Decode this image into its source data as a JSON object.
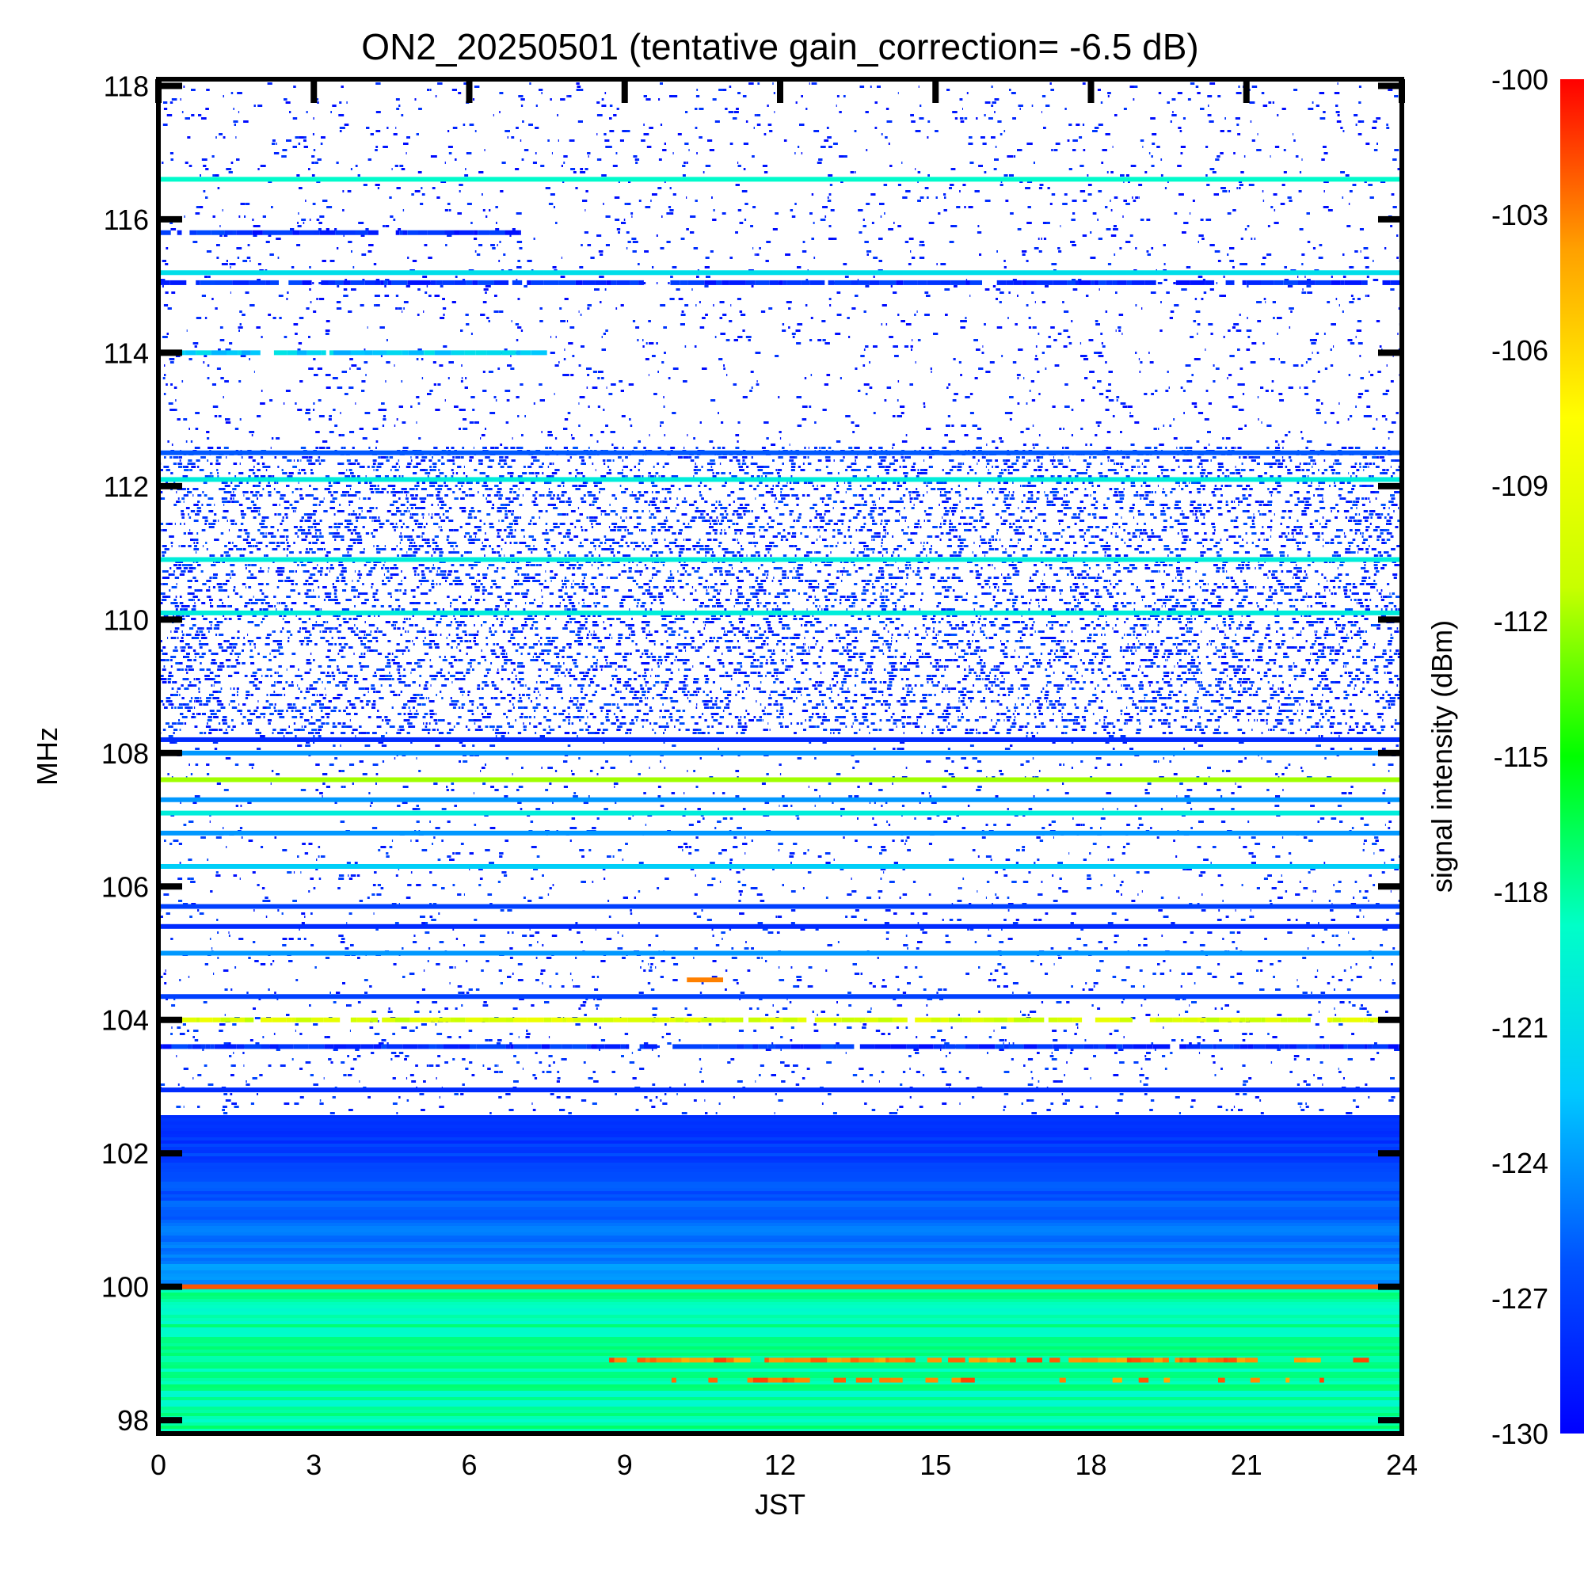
{
  "chart_data": {
    "type": "heatmap",
    "title": "ON2_20250501 (tentative gain_correction= -6.5 dB)",
    "xlabel": "JST",
    "ylabel": "MHz",
    "xlim": [
      0,
      24
    ],
    "ylim": [
      97.8,
      118.1
    ],
    "x_ticks": [
      "0",
      "3",
      "6",
      "9",
      "12",
      "15",
      "18",
      "21",
      "24"
    ],
    "y_ticks": [
      "98",
      "100",
      "102",
      "104",
      "106",
      "108",
      "110",
      "112",
      "114",
      "116",
      "118"
    ],
    "colorbar": {
      "label": "signal intensity (dBm)",
      "range": [
        -130,
        -100
      ],
      "ticks": [
        "-100",
        "-103",
        "-106",
        "-109",
        "-112",
        "-115",
        "-118",
        "-121",
        "-124",
        "-127",
        "-130"
      ],
      "colormap": [
        "#0000ff",
        "#0050ff",
        "#00c8ff",
        "#00ffc8",
        "#00ff00",
        "#c8ff00",
        "#ffff00",
        "#ffa000",
        "#ff0000"
      ]
    },
    "bands": [
      {
        "freq_mhz": 116.6,
        "level_dbm": -119,
        "duty": 1.0
      },
      {
        "freq_mhz": 115.8,
        "level_dbm": -128,
        "x_range": [
          0,
          7
        ],
        "duty": 0.9
      },
      {
        "freq_mhz": 115.2,
        "level_dbm": -121,
        "duty": 1.0
      },
      {
        "freq_mhz": 115.05,
        "level_dbm": -128,
        "duty": 0.9
      },
      {
        "freq_mhz": 114.0,
        "level_dbm": -122,
        "x_range": [
          0,
          7.5
        ],
        "duty": 0.9
      },
      {
        "freq_mhz": 112.5,
        "level_dbm": -126,
        "duty": 1.0
      },
      {
        "freq_mhz": 112.1,
        "level_dbm": -120,
        "duty": 1.0
      },
      {
        "freq_mhz": 110.9,
        "level_dbm": -120,
        "duty": 1.0
      },
      {
        "freq_mhz": 110.1,
        "level_dbm": -120,
        "duty": 1.0
      },
      {
        "freq_mhz": 108.2,
        "level_dbm": -128,
        "duty": 1.0
      },
      {
        "freq_mhz": 108.0,
        "level_dbm": -124,
        "duty": 1.0
      },
      {
        "freq_mhz": 107.6,
        "level_dbm": -112,
        "duty": 1.0
      },
      {
        "freq_mhz": 107.3,
        "level_dbm": -124,
        "duty": 1.0
      },
      {
        "freq_mhz": 107.1,
        "level_dbm": -120,
        "duty": 1.0
      },
      {
        "freq_mhz": 106.8,
        "level_dbm": -124,
        "duty": 1.0
      },
      {
        "freq_mhz": 106.3,
        "level_dbm": -122,
        "duty": 1.0
      },
      {
        "freq_mhz": 105.7,
        "level_dbm": -127,
        "duty": 1.0
      },
      {
        "freq_mhz": 105.4,
        "level_dbm": -128,
        "duty": 1.0
      },
      {
        "freq_mhz": 105.0,
        "level_dbm": -124,
        "duty": 1.0
      },
      {
        "freq_mhz": 104.6,
        "level_dbm": -103,
        "x_range": [
          10.2,
          10.9
        ],
        "duty": 1.0
      },
      {
        "freq_mhz": 104.35,
        "level_dbm": -127,
        "duty": 1.0
      },
      {
        "freq_mhz": 104.0,
        "level_dbm": -110,
        "duty": 0.9
      },
      {
        "freq_mhz": 103.6,
        "level_dbm": -128,
        "duty": 0.95
      },
      {
        "freq_mhz": 102.95,
        "level_dbm": -128,
        "duty": 1.0
      },
      {
        "freq_mhz": 100.0,
        "level_dbm": -102,
        "duty": 1.0
      },
      {
        "freq_mhz": 98.9,
        "level_dbm": -103,
        "x_range": [
          8,
          23.5
        ],
        "duty": 0.7
      },
      {
        "freq_mhz": 98.6,
        "level_dbm": -103,
        "x_range": [
          8.5,
          22.5
        ],
        "duty": 0.3
      }
    ]
  }
}
